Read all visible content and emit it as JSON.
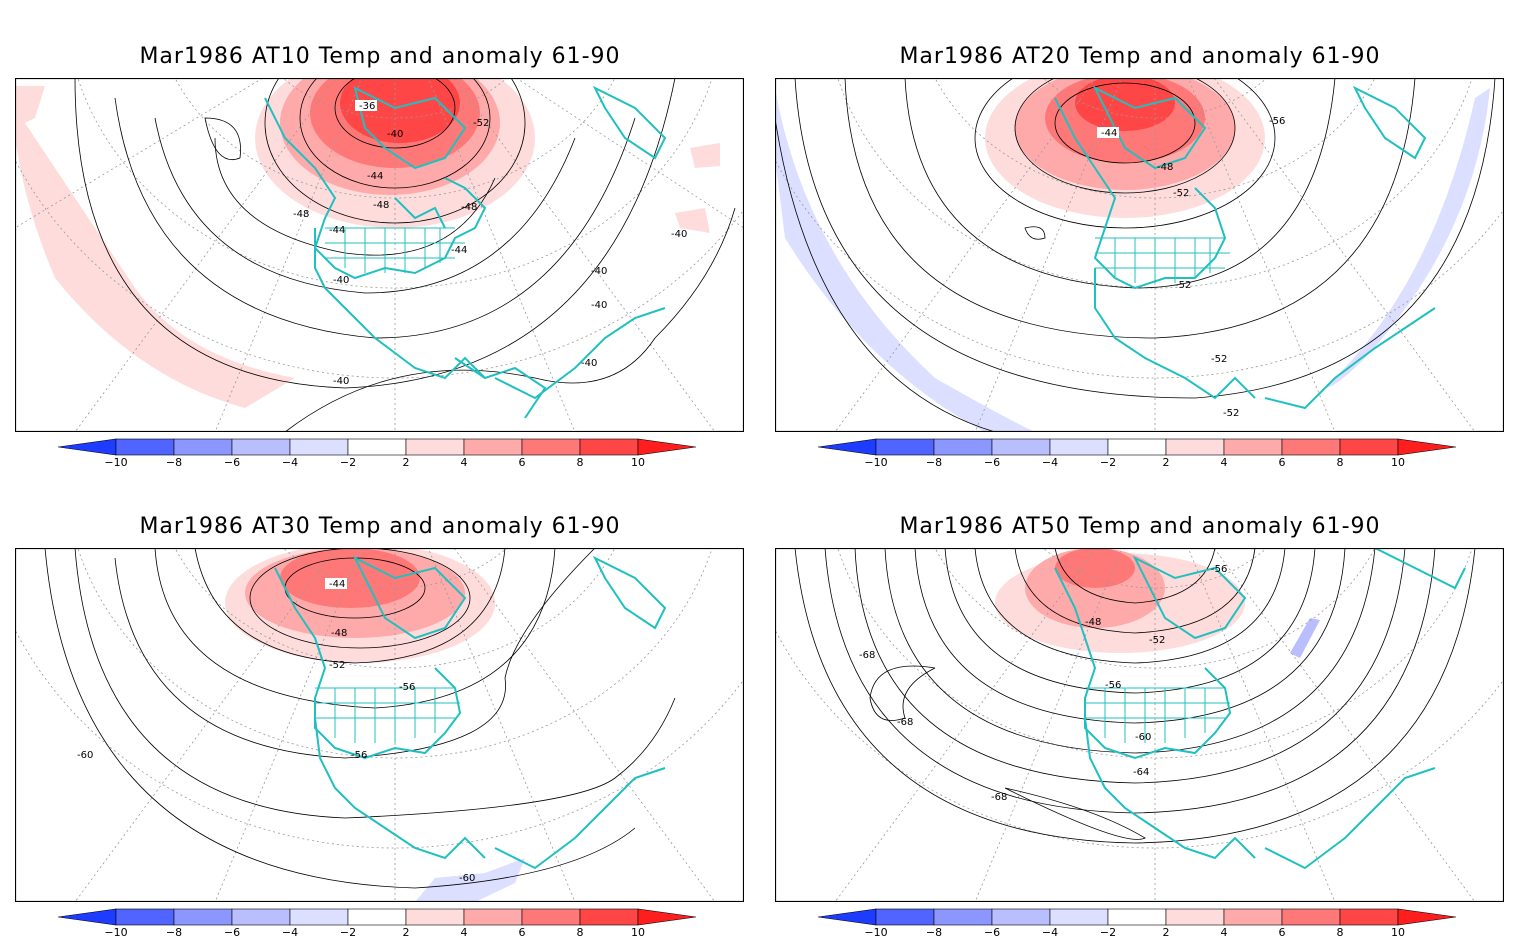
{
  "colorbar": {
    "labels": [
      "−10",
      "−8",
      "−6",
      "−4",
      "−2",
      "2",
      "4",
      "6",
      "8",
      "10"
    ],
    "colors": [
      "#1e3cff",
      "#5064ff",
      "#8c96ff",
      "#b9beff",
      "#dcdfff",
      "#ffffff",
      "#ffdcdc",
      "#ffaaaa",
      "#ff7878",
      "#ff4646",
      "#ff1e1e"
    ]
  },
  "panels": [
    {
      "title": "Mar1986 AT10 Temp and anomaly 61-90",
      "contour_labels": [
        "-36",
        "-40",
        "-44",
        "-48",
        "-52",
        "-48",
        "-48",
        "-44",
        "-44",
        "-40",
        "-40",
        "-40",
        "-40",
        "-40",
        "-40"
      ]
    },
    {
      "title": "Mar1986 AT20 Temp and anomaly 61-90",
      "contour_labels": [
        "-44",
        "-48",
        "-52",
        "-56",
        "-52",
        "-52",
        "-52"
      ]
    },
    {
      "title": "Mar1986 AT30 Temp and anomaly 61-90",
      "contour_labels": [
        "-44",
        "-48",
        "-52",
        "-56",
        "-56",
        "-60",
        "-60"
      ]
    },
    {
      "title": "Mar1986 AT50 Temp and anomaly 61-90",
      "contour_labels": [
        "-56",
        "-48",
        "-52",
        "-56",
        "-60",
        "-64",
        "-68",
        "-68",
        "-68"
      ]
    }
  ]
}
